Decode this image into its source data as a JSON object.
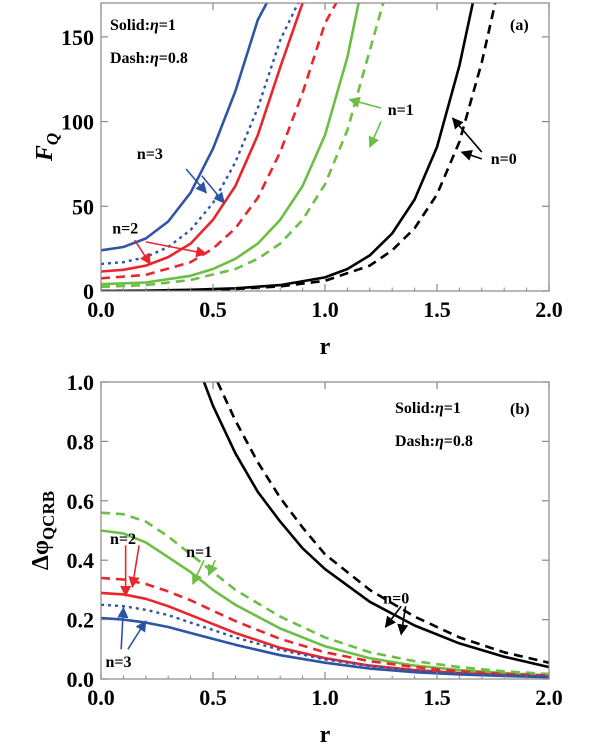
{
  "chart_data": [
    {
      "panel": "(a)",
      "type": "line",
      "title": "",
      "xlabel": "r",
      "ylabel": "F",
      "ylabel_sub": "Q",
      "xlim": [
        0,
        2.0
      ],
      "ylim": [
        0,
        170
      ],
      "xticks": [
        "0.0",
        "0.5",
        "1.0",
        "1.5",
        "2.0"
      ],
      "yticks": [
        "0",
        "50",
        "100",
        "150"
      ],
      "legend_lines": [
        {
          "prefix": "Solid:",
          "sym": "η",
          "suffix": "=1"
        },
        {
          "prefix": "Dash:",
          "sym": "η",
          "suffix": "=0.8"
        }
      ],
      "panel_label": "(a)",
      "series": [
        {
          "n": 3,
          "eta": 1,
          "style": "solid",
          "color": "#2E55A5",
          "x": [
            0,
            0.1,
            0.2,
            0.3,
            0.4,
            0.5,
            0.6,
            0.7,
            0.74
          ],
          "y": [
            24,
            26,
            31,
            41,
            58,
            84,
            118,
            160,
            170
          ]
        },
        {
          "n": 3,
          "eta": 0.8,
          "style": "dotted",
          "color": "#2E55A5",
          "x": [
            0,
            0.1,
            0.2,
            0.3,
            0.4,
            0.5,
            0.6,
            0.7,
            0.8,
            0.88
          ],
          "y": [
            16,
            17,
            20,
            26,
            36,
            52,
            76,
            108,
            148,
            170
          ]
        },
        {
          "n": 2,
          "eta": 1,
          "style": "solid",
          "color": "#E8262B",
          "x": [
            0,
            0.1,
            0.2,
            0.3,
            0.4,
            0.5,
            0.6,
            0.7,
            0.8,
            0.9
          ],
          "y": [
            11.5,
            12.5,
            15,
            20,
            28,
            42,
            62,
            92,
            132,
            170
          ]
        },
        {
          "n": 2,
          "eta": 0.8,
          "style": "dashed",
          "color": "#E8262B",
          "x": [
            0,
            0.2,
            0.4,
            0.5,
            0.6,
            0.7,
            0.8,
            0.9,
            1.0,
            1.05
          ],
          "y": [
            7.5,
            9.5,
            17,
            25,
            37,
            55,
            82,
            117,
            158,
            170
          ]
        },
        {
          "n": 1,
          "eta": 1,
          "style": "solid",
          "color": "#6DBE45",
          "x": [
            0,
            0.2,
            0.4,
            0.5,
            0.6,
            0.7,
            0.8,
            0.9,
            1.0,
            1.1,
            1.15
          ],
          "y": [
            4,
            5,
            9,
            13,
            19,
            28,
            42,
            62,
            92,
            138,
            170
          ]
        },
        {
          "n": 1,
          "eta": 0.8,
          "style": "dashed",
          "color": "#6DBE45",
          "x": [
            0,
            0.2,
            0.4,
            0.6,
            0.7,
            0.8,
            0.9,
            1.0,
            1.1,
            1.2,
            1.26
          ],
          "y": [
            2.5,
            3.5,
            6.5,
            13,
            19,
            28,
            42,
            63,
            95,
            142,
            170
          ]
        },
        {
          "n": 0,
          "eta": 1,
          "style": "solid",
          "color": "#000000",
          "x": [
            0,
            0.2,
            0.4,
            0.6,
            0.8,
            1.0,
            1.1,
            1.2,
            1.3,
            1.4,
            1.5,
            1.6,
            1.66
          ],
          "y": [
            0,
            0.2,
            0.7,
            1.6,
            3.5,
            8,
            13,
            21,
            34,
            54,
            85,
            133,
            170
          ]
        },
        {
          "n": 0,
          "eta": 0.8,
          "style": "dashed",
          "color": "#000000",
          "x": [
            0,
            0.2,
            0.4,
            0.6,
            0.8,
            1.0,
            1.2,
            1.3,
            1.4,
            1.5,
            1.6,
            1.7,
            1.76
          ],
          "y": [
            0,
            0.1,
            0.5,
            1.2,
            2.7,
            6,
            15,
            24,
            37,
            57,
            88,
            135,
            170
          ]
        }
      ],
      "annotations": [
        {
          "text": "n=3",
          "color": "#2E55A5"
        },
        {
          "text": "n=2",
          "color": "#E8262B"
        },
        {
          "text": "n=1",
          "color": "#6DBE45"
        },
        {
          "text": "n=0",
          "color": "#000000"
        }
      ]
    },
    {
      "panel": "(b)",
      "type": "line",
      "title": "",
      "xlabel": "r",
      "ylabel": "Δφ",
      "ylabel_sub": "QCRB",
      "xlim": [
        0,
        2.0
      ],
      "ylim": [
        0,
        1.0
      ],
      "xticks": [
        "0.0",
        "0.5",
        "1.0",
        "1.5",
        "2.0"
      ],
      "yticks": [
        "0.0",
        "0.2",
        "0.4",
        "0.6",
        "0.8",
        "1.0"
      ],
      "legend_lines": [
        {
          "prefix": "Solid:",
          "sym": "η",
          "suffix": "=1"
        },
        {
          "prefix": "Dash:",
          "sym": "η",
          "suffix": "=0.8"
        }
      ],
      "panel_label": "(b)",
      "series": [
        {
          "n": 0,
          "eta": 1,
          "style": "solid",
          "color": "#000000",
          "x": [
            0.46,
            0.5,
            0.6,
            0.7,
            0.8,
            0.9,
            1.0,
            1.2,
            1.4,
            1.6,
            1.8,
            2.0
          ],
          "y": [
            1.0,
            0.92,
            0.76,
            0.63,
            0.53,
            0.44,
            0.37,
            0.26,
            0.18,
            0.12,
            0.075,
            0.04
          ]
        },
        {
          "n": 0,
          "eta": 0.8,
          "style": "dashed",
          "color": "#000000",
          "x": [
            0.52,
            0.6,
            0.7,
            0.8,
            0.9,
            1.0,
            1.2,
            1.4,
            1.6,
            1.8,
            2.0
          ],
          "y": [
            1.0,
            0.87,
            0.73,
            0.61,
            0.51,
            0.42,
            0.3,
            0.21,
            0.14,
            0.09,
            0.055
          ]
        },
        {
          "n": 1,
          "eta": 1,
          "style": "solid",
          "color": "#6DBE45",
          "x": [
            0,
            0.1,
            0.2,
            0.3,
            0.4,
            0.5,
            0.6,
            0.8,
            1.0,
            1.2,
            1.4,
            1.6,
            1.8,
            2.0
          ],
          "y": [
            0.5,
            0.49,
            0.46,
            0.41,
            0.36,
            0.3,
            0.25,
            0.17,
            0.11,
            0.07,
            0.045,
            0.03,
            0.02,
            0.012
          ]
        },
        {
          "n": 1,
          "eta": 0.8,
          "style": "dashed",
          "color": "#6DBE45",
          "x": [
            0,
            0.1,
            0.2,
            0.3,
            0.4,
            0.5,
            0.6,
            0.8,
            1.0,
            1.2,
            1.4,
            1.6,
            1.8,
            2.0
          ],
          "y": [
            0.56,
            0.555,
            0.53,
            0.48,
            0.42,
            0.36,
            0.3,
            0.21,
            0.14,
            0.09,
            0.06,
            0.04,
            0.026,
            0.017
          ]
        },
        {
          "n": 2,
          "eta": 1,
          "style": "solid",
          "color": "#E8262B",
          "x": [
            0,
            0.1,
            0.2,
            0.3,
            0.4,
            0.5,
            0.6,
            0.8,
            1.0,
            1.2,
            1.4,
            1.6,
            1.8,
            2.0
          ],
          "y": [
            0.29,
            0.285,
            0.27,
            0.245,
            0.215,
            0.185,
            0.155,
            0.105,
            0.07,
            0.045,
            0.03,
            0.02,
            0.013,
            0.008
          ]
        },
        {
          "n": 2,
          "eta": 0.8,
          "style": "dashed",
          "color": "#E8262B",
          "x": [
            0,
            0.1,
            0.2,
            0.3,
            0.4,
            0.5,
            0.6,
            0.8,
            1.0,
            1.2,
            1.4,
            1.6,
            1.8,
            2.0
          ],
          "y": [
            0.34,
            0.335,
            0.32,
            0.295,
            0.265,
            0.23,
            0.195,
            0.135,
            0.09,
            0.06,
            0.04,
            0.026,
            0.017,
            0.011
          ]
        },
        {
          "n": 3,
          "eta": 1,
          "style": "solid",
          "color": "#2E55A5",
          "x": [
            0,
            0.1,
            0.2,
            0.3,
            0.4,
            0.5,
            0.6,
            0.8,
            1.0,
            1.2,
            1.4,
            1.6,
            1.8,
            2.0
          ],
          "y": [
            0.205,
            0.2,
            0.19,
            0.175,
            0.155,
            0.135,
            0.115,
            0.08,
            0.055,
            0.035,
            0.023,
            0.015,
            0.01,
            0.006
          ]
        },
        {
          "n": 3,
          "eta": 0.8,
          "style": "dotted",
          "color": "#2E55A5",
          "x": [
            0,
            0.1,
            0.2,
            0.3,
            0.4,
            0.5,
            0.6,
            0.8,
            1.0,
            1.2,
            1.4,
            1.6,
            1.8,
            2.0
          ],
          "y": [
            0.25,
            0.245,
            0.233,
            0.215,
            0.19,
            0.165,
            0.14,
            0.098,
            0.066,
            0.044,
            0.029,
            0.019,
            0.012,
            0.008
          ]
        }
      ],
      "annotations": [
        {
          "text": "n=2",
          "color": "#E8262B"
        },
        {
          "text": "n=1",
          "color": "#6DBE45"
        },
        {
          "text": "n=0",
          "color": "#000000"
        },
        {
          "text": "n=3",
          "color": "#2E55A5"
        }
      ]
    }
  ]
}
